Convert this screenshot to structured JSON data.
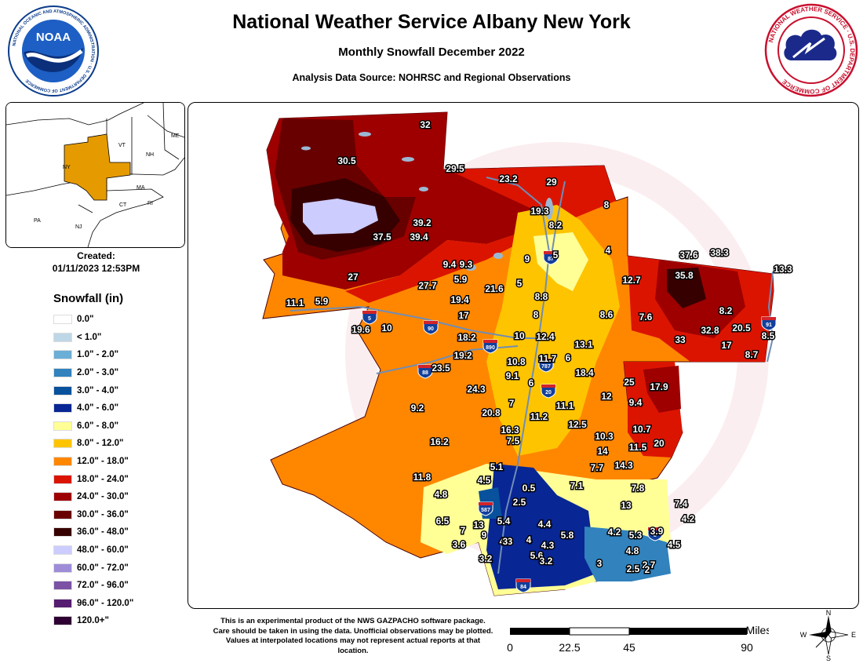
{
  "header": {
    "title": "National Weather Service Albany New York",
    "subtitle": "Monthly Snowfall December 2022",
    "source": "Analysis Data Source: NOHRSC and Regional Observations"
  },
  "logos": {
    "noaa_text": "NOAA",
    "noaa_ring": "NATIONAL OCEANIC AND ATMOSPHERIC ADMINISTRATION · U.S. DEPARTMENT OF COMMERCE",
    "nws_ring": "NATIONAL WEATHER SERVICE · U.S. DEPARTMENT OF COMMERCE"
  },
  "inset": {
    "labels": [
      "ME",
      "VT",
      "NH",
      "NY",
      "MA",
      "CT",
      "RI",
      "PA",
      "NJ"
    ]
  },
  "created": {
    "label": "Created:",
    "value": "01/11/2023 12:53PM"
  },
  "legend": {
    "title": "Snowfall (in)",
    "items": [
      {
        "label": "0.0\"",
        "color": "#ffffff"
      },
      {
        "label": "< 1.0\"",
        "color": "#bdd7e7"
      },
      {
        "label": "1.0\" - 2.0\"",
        "color": "#6baed6"
      },
      {
        "label": "2.0\" - 3.0\"",
        "color": "#3182bd"
      },
      {
        "label": "3.0\" - 4.0\"",
        "color": "#08519c"
      },
      {
        "label": "4.0\" - 6.0\"",
        "color": "#082694"
      },
      {
        "label": "6.0\" - 8.0\"",
        "color": "#ffff96"
      },
      {
        "label": "8.0\" - 12.0\"",
        "color": "#ffc400"
      },
      {
        "label": "12.0\" - 18.0\"",
        "color": "#ff8700"
      },
      {
        "label": "18.0\" - 24.0\"",
        "color": "#db1400"
      },
      {
        "label": "24.0\" - 30.0\"",
        "color": "#9e0000"
      },
      {
        "label": "30.0\" - 36.0\"",
        "color": "#690000"
      },
      {
        "label": "36.0\" - 48.0\"",
        "color": "#360000"
      },
      {
        "label": "48.0\" - 60.0\"",
        "color": "#ccccff"
      },
      {
        "label": "60.0\" - 72.0\"",
        "color": "#9f8cd8"
      },
      {
        "label": "72.0\" - 96.0\"",
        "color": "#7c52a5"
      },
      {
        "label": "96.0\" - 120.0\"",
        "color": "#561c72"
      },
      {
        "label": "120.0+\"",
        "color": "#2e0033"
      }
    ]
  },
  "map_labels": [
    "32",
    "30.5",
    "29.5",
    "23.2",
    "29",
    "39.2",
    "37.5",
    "39.4",
    "19.3",
    "8.2",
    "8",
    "4",
    "9",
    "9.4",
    "9.3",
    "5",
    "5.9",
    "21.6",
    "5",
    "27",
    "27.7",
    "19.4",
    "8.8",
    "12.7",
    "37.6",
    "38.3",
    "35.8",
    "13.3",
    "11.1",
    "5.9",
    "17",
    "8",
    "7.6",
    "8.2",
    "8.6",
    "19.6",
    "10",
    "18.2",
    "10",
    "12.4",
    "13.1",
    "33",
    "32.8",
    "20.5",
    "17",
    "8.5",
    "8.7",
    "19.2",
    "10.8",
    "11.7",
    "6",
    "23.5",
    "9.1",
    "6",
    "18.4",
    "24.3",
    "25",
    "17.9",
    "9.2",
    "12",
    "9.4",
    "20.8",
    "7",
    "11.2",
    "11.1",
    "16.2",
    "16.3",
    "12.5",
    "10.3",
    "10.7",
    "7.5",
    "14",
    "11.5",
    "20",
    "7.7",
    "14.3",
    "11.8",
    "5.1",
    "4.5",
    "0.5",
    "7.1",
    "7.8",
    "4.8",
    "2.5",
    "13",
    "7.4",
    "6.5",
    "13",
    "5.4",
    "4.4",
    "4.2",
    "7",
    "9",
    "4.3",
    "4",
    "4.3",
    "5.8",
    "5.3",
    "4.2",
    "3.9",
    "4.5",
    "3.6",
    "3",
    "4.8",
    "3.2",
    "5.6",
    "3.2",
    "3",
    "2.7",
    "2",
    "2.5"
  ],
  "highways": [
    "87",
    "5",
    "90",
    "890",
    "88",
    "787",
    "20",
    "91",
    "587",
    "8",
    "84"
  ],
  "disclaimer": "This is an experimental product of the NWS GAZPACHO software package. Care should be taken in using the data. Unofficial observations may be plotted. Values at interpolated locations may not represent actual reports at that location.",
  "scale": {
    "unit": "Miles",
    "ticks": [
      "0",
      "22.5",
      "45",
      "90"
    ]
  },
  "compass": {
    "n": "N",
    "s": "S",
    "e": "E",
    "w": "W"
  },
  "colors": {
    "lake": "#9bb8d3",
    "river": "#6f8db6",
    "interstate_shield": "#123f9c",
    "interstate_top": "#d3232a",
    "lake_effect_max": "#ccccff"
  }
}
